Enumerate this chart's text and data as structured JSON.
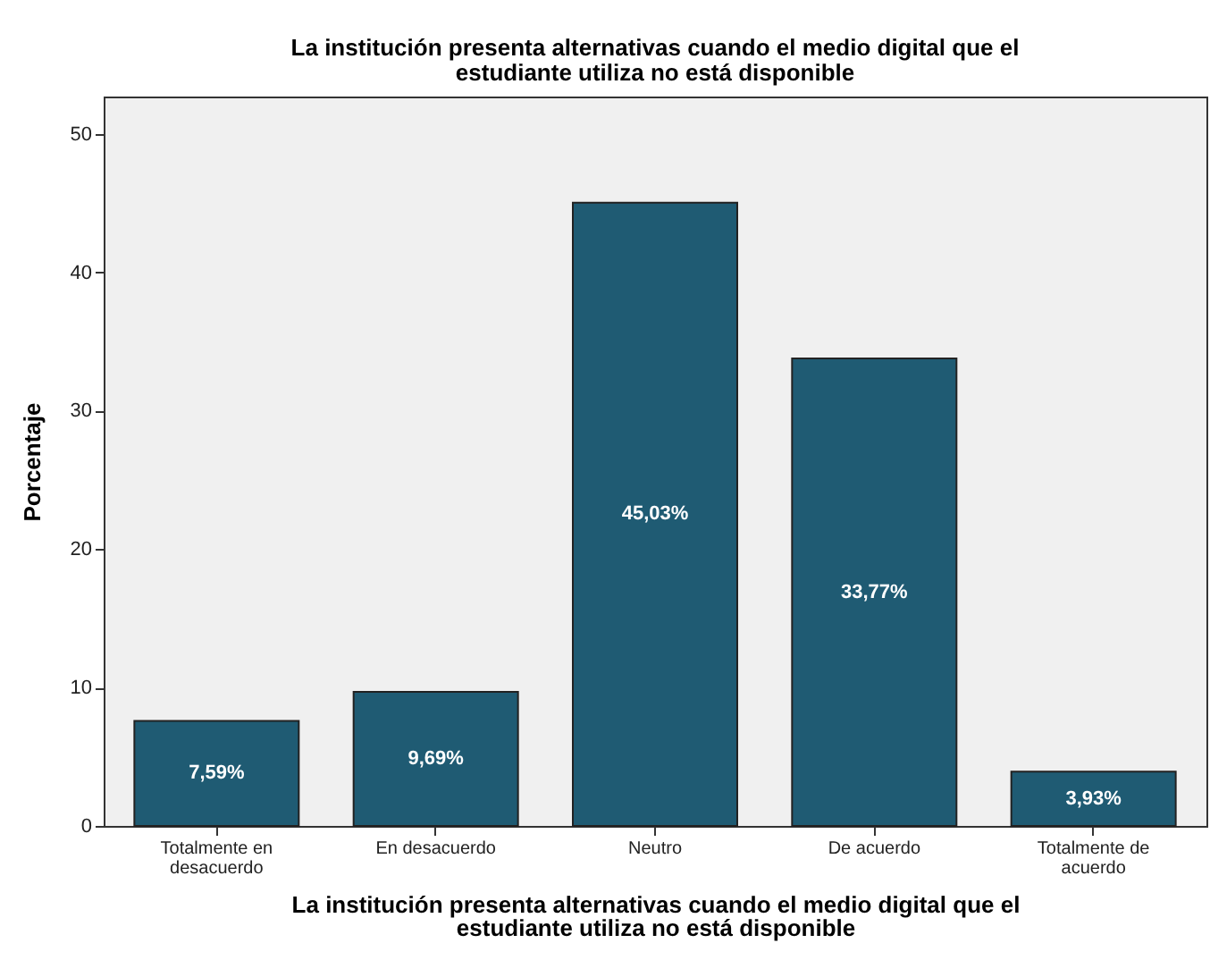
{
  "chart_data": {
    "type": "bar",
    "title": "La institución presenta alternativas cuando el medio digital que el estudiante utiliza no está disponible",
    "xlabel": "La institución presenta alternativas cuando el medio digital que el estudiante utiliza no está disponible",
    "ylabel": "Porcentaje",
    "categories": [
      "Totalmente en desacuerdo",
      "En desacuerdo",
      "Neutro",
      "De acuerdo",
      "Totalmente de acuerdo"
    ],
    "values": [
      7.59,
      9.69,
      45.03,
      33.77,
      3.93
    ],
    "value_labels": [
      "7,59%",
      "9,69%",
      "45,03%",
      "33,77%",
      "3,93%"
    ],
    "color": "#1f5b73",
    "ylim": [
      0,
      52.7
    ],
    "yticks": [
      0,
      10,
      20,
      30,
      40,
      50
    ],
    "grid": false
  }
}
